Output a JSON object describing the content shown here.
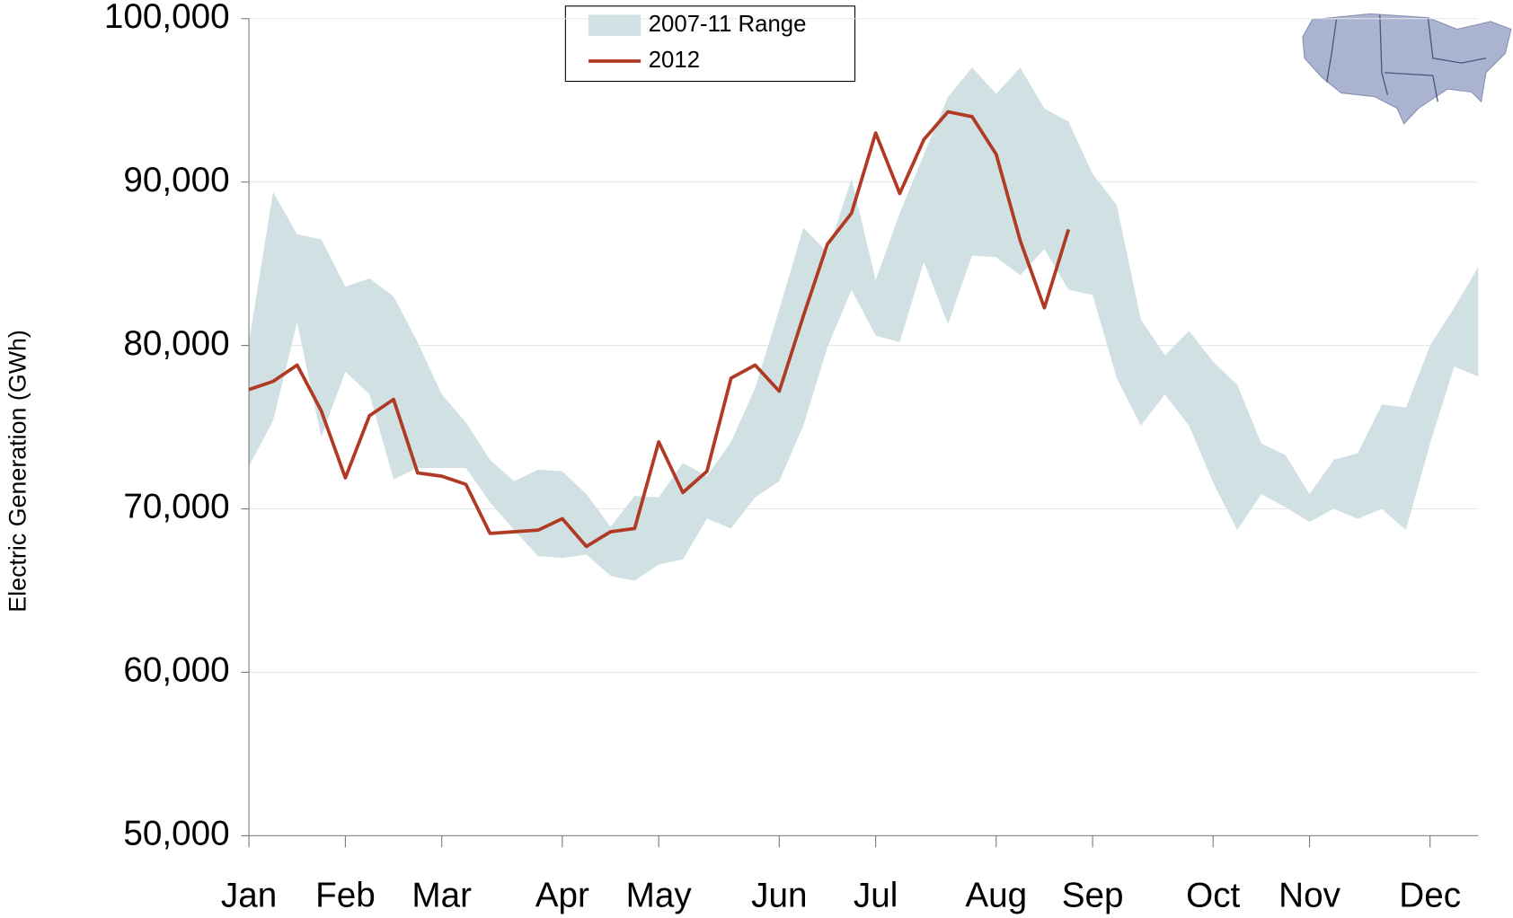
{
  "chart_data": {
    "type": "range-line",
    "y_label": "Electric Generation (GWh)",
    "categories": [
      "Jan",
      null,
      null,
      null,
      "Feb",
      null,
      null,
      null,
      "Mar",
      null,
      null,
      null,
      null,
      "Apr",
      null,
      null,
      null,
      "May",
      null,
      null,
      null,
      null,
      "Jun",
      null,
      null,
      null,
      "Jul",
      null,
      null,
      null,
      null,
      "Aug",
      null,
      null,
      null,
      "Sep",
      null,
      null,
      null,
      null,
      "Oct",
      null,
      null,
      null,
      "Nov",
      null,
      null,
      null,
      null,
      "Dec",
      null,
      null
    ],
    "series": [
      {
        "name": "2007-11 Range",
        "color": "#d1e1e3",
        "upper": [
          80200,
          89400,
          86800,
          86500,
          83600,
          84100,
          83000,
          80200,
          77000,
          75300,
          73000,
          71700,
          72400,
          72300,
          70900,
          68900,
          70800,
          70700,
          72800,
          72000,
          74100,
          77400,
          82200,
          87200,
          85700,
          90200,
          84000,
          88100,
          91700,
          95200,
          97000,
          95400,
          97000,
          94500,
          93700,
          90500,
          88600,
          81600,
          79400,
          80900,
          79000,
          77600,
          74000,
          73300,
          70900,
          73000,
          73400,
          76400,
          76200,
          80000,
          82300,
          84800
        ],
        "lower": [
          72600,
          75400,
          81400,
          74400,
          78400,
          77000,
          71800,
          72500,
          72500,
          72500,
          70400,
          68700,
          67100,
          67000,
          67200,
          65900,
          65600,
          66600,
          66900,
          69400,
          68800,
          70700,
          71700,
          75100,
          79900,
          83400,
          80600,
          80200,
          85100,
          81300,
          85500,
          85400,
          84300,
          85900,
          83400,
          83100,
          78000,
          75100,
          77000,
          75100,
          71600,
          68700,
          70900,
          70100,
          69200,
          70000,
          69400,
          70000,
          68700,
          74000,
          78700,
          78100
        ]
      },
      {
        "name": "2012",
        "color": "#b03a24",
        "values": [
          77300,
          77800,
          78800,
          76000,
          71900,
          75700,
          76700,
          72200,
          72000,
          71500,
          68500,
          68600,
          68700,
          69400,
          67700,
          68600,
          68800,
          74100,
          71000,
          72300,
          78000,
          78800,
          77200,
          81800,
          86200,
          88100,
          93000,
          89300,
          92600,
          94300,
          94000,
          91700,
          86400,
          82300,
          87100,
          null,
          null,
          null,
          null,
          null,
          null,
          null,
          null,
          null,
          null,
          null,
          null,
          null,
          null,
          null,
          null,
          null
        ]
      }
    ],
    "ylim": [
      50000,
      100000
    ],
    "yticks": [
      {
        "value": 50000,
        "label": "50,000"
      },
      {
        "value": 60000,
        "label": "60,000"
      },
      {
        "value": 70000,
        "label": "70,000"
      },
      {
        "value": 80000,
        "label": "80,000"
      },
      {
        "value": 90000,
        "label": "90,000"
      },
      {
        "value": 100000,
        "label": "100,000"
      }
    ],
    "grid": true
  }
}
